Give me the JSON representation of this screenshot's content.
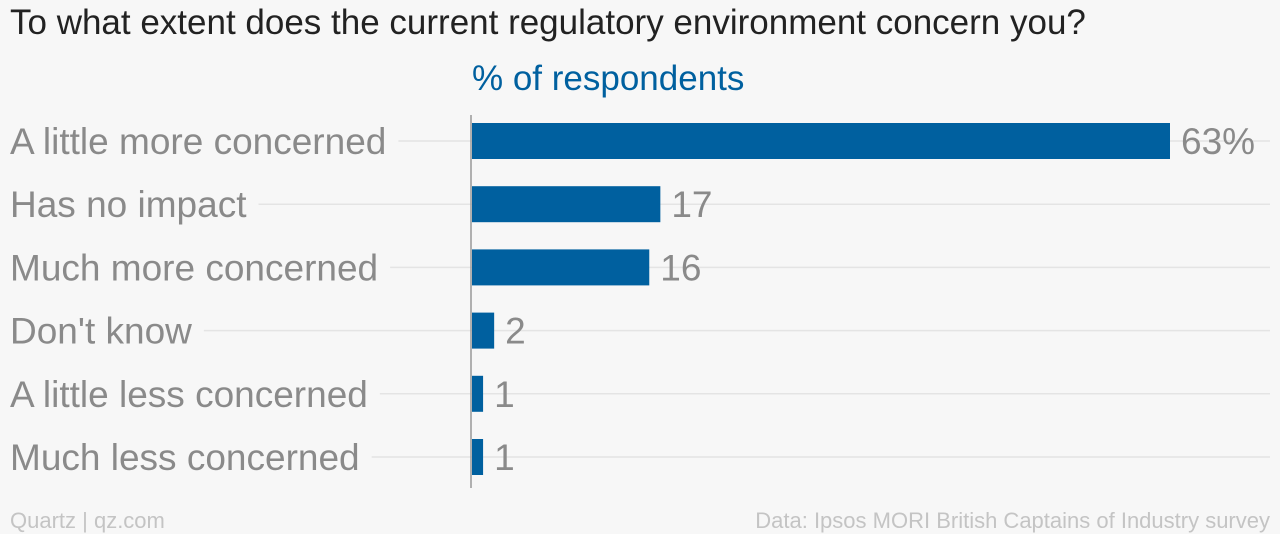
{
  "chart_data": {
    "type": "bar",
    "orientation": "horizontal",
    "title": "To what extent does the current regulatory environment concern you?",
    "subtitle": "% of respondents",
    "categories": [
      "A little more concerned",
      "Has no impact",
      "Much more concerned",
      "Don't know",
      "A little less concerned",
      "Much less concerned"
    ],
    "values": [
      63,
      17,
      16,
      2,
      1,
      1
    ],
    "value_labels": [
      "63%",
      "17",
      "16",
      "2",
      "1",
      "1"
    ],
    "xlim": [
      0,
      63
    ],
    "grid": true
  },
  "footer": {
    "left": "Quartz | qz.com",
    "right": "Data: Ipsos MORI British Captains of Industry survey"
  },
  "colors": {
    "bar": "#00609f",
    "subtitle": "#00609f",
    "title": "#222222",
    "labels": "#8a8a8a",
    "footer": "#c4c4c4",
    "gridline": "#e4e4e4",
    "axis": "#999999",
    "background": "#f7f7f7"
  }
}
